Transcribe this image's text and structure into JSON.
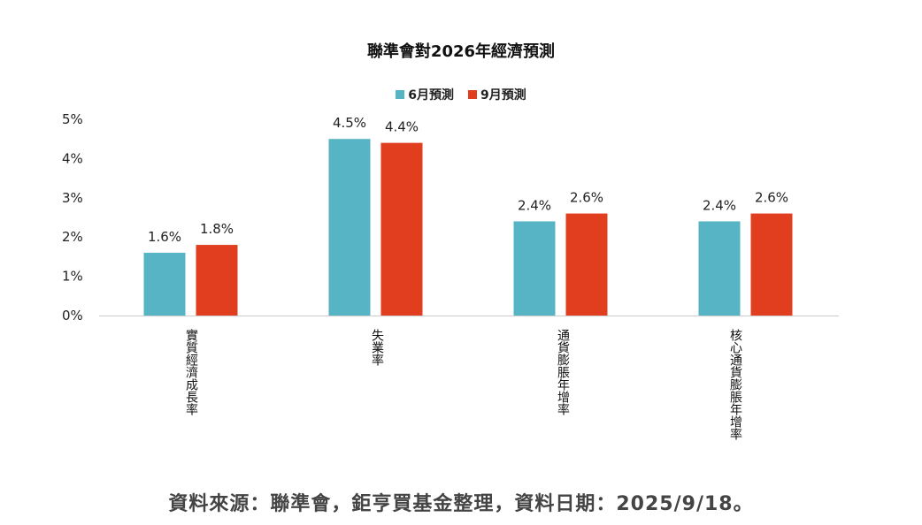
{
  "chart_data": {
    "type": "bar",
    "title": "聯準會對2026年經濟預測",
    "categories": [
      "實質經濟成長率",
      "失業率",
      "通貨膨脹年增率",
      "核心通貨膨脹年增率"
    ],
    "series": [
      {
        "name": "6月預測",
        "color": "#56B4C4",
        "values": [
          1.6,
          4.5,
          2.4,
          2.4
        ],
        "labels": [
          "1.6%",
          "4.5%",
          "2.4%",
          "2.4%"
        ]
      },
      {
        "name": "9月預測",
        "color": "#E03E1E",
        "values": [
          1.8,
          4.4,
          2.6,
          2.6
        ],
        "labels": [
          "1.8%",
          "4.4%",
          "2.6%",
          "2.6%"
        ]
      }
    ],
    "ylim": [
      0,
      5
    ],
    "yticks": [
      "0%",
      "1%",
      "2%",
      "3%",
      "4%",
      "5%"
    ],
    "grid": false,
    "legend": "top"
  },
  "source": "資料來源：聯準會，鉅亨買基金整理，資料日期：2025/9/18。"
}
